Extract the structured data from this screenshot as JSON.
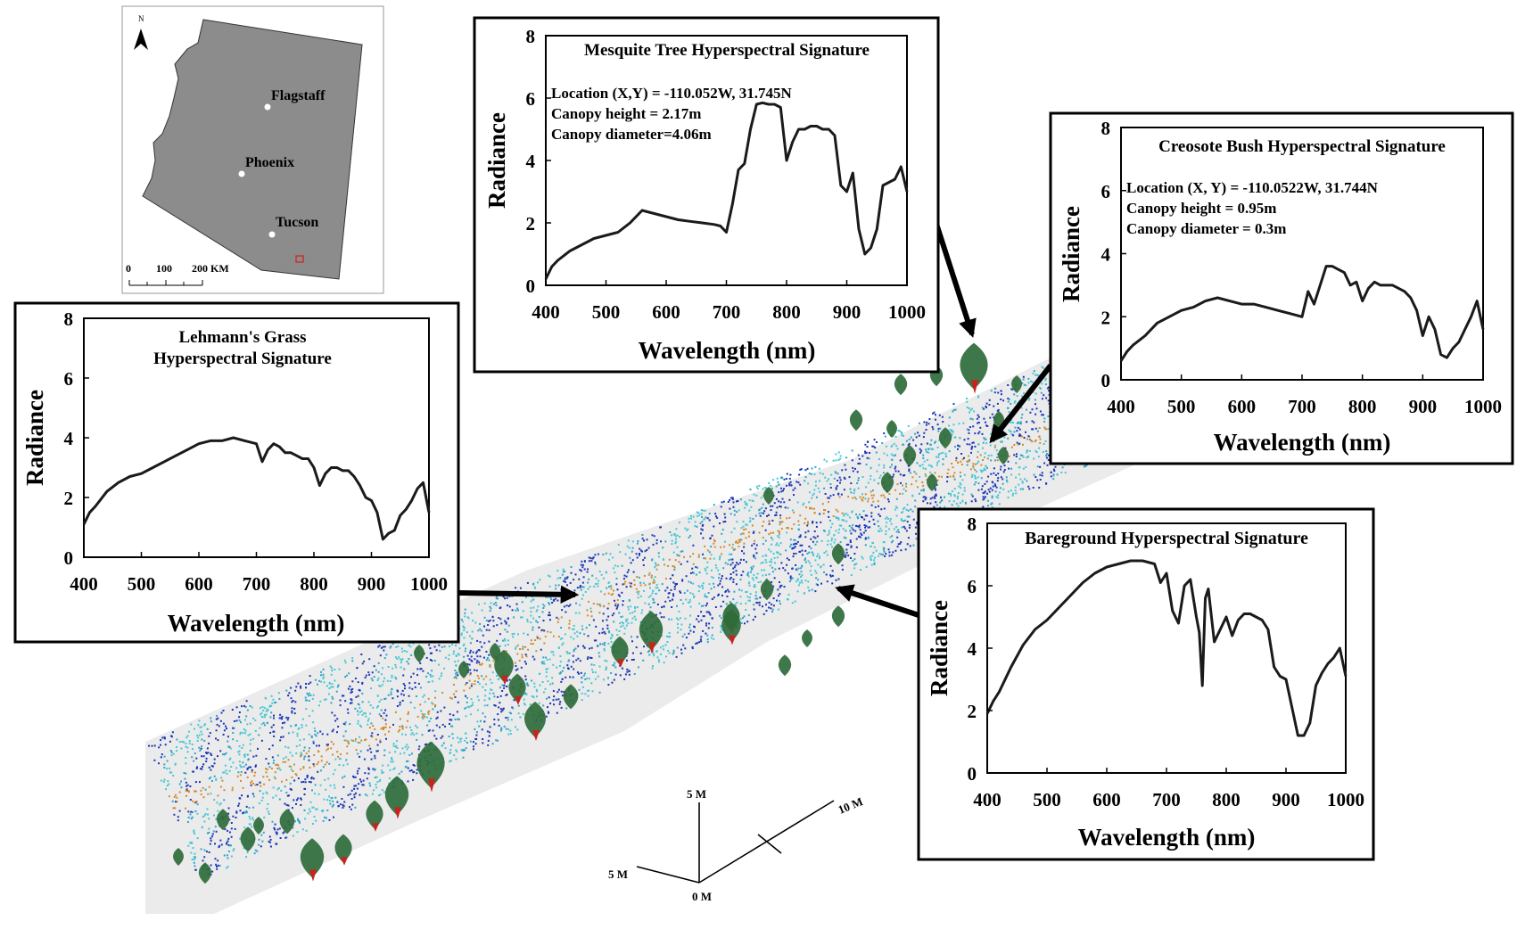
{
  "map": {
    "north_label": "N",
    "cities": [
      "Flagstaff",
      "Phoenix",
      "Tucson"
    ],
    "scale_labels": [
      "0",
      "100",
      "200 KM"
    ],
    "fill_color": "#8c8c8c",
    "site_marker_color": "#d21f1f"
  },
  "scene": {
    "axis_labels": {
      "z": "5 M",
      "x": "10 M",
      "y": "5 M",
      "origin": "0 M"
    },
    "point_colors": [
      "#1a36b8",
      "#2fa6c8",
      "#47c7d4",
      "#d28a2c",
      "#3a7a45"
    ],
    "canopy_color": "#2e6b3a",
    "stem_color": "#c8231e"
  },
  "chart_data": [
    {
      "id": "mesquite",
      "type": "line",
      "title": "Mesquite Tree Hyperspectral Signature",
      "annotations": [
        "Location (X,Y) = -110.052W, 31.745N",
        "Canopy height = 2.17m",
        "Canopy diameter=4.06m"
      ],
      "xlabel": "Wavelength (nm)",
      "ylabel": "Radiance",
      "xlim": [
        400,
        1000
      ],
      "ylim": [
        0,
        8
      ],
      "xticks": [
        400,
        500,
        600,
        700,
        800,
        900,
        1000
      ],
      "yticks": [
        0,
        2,
        4,
        6,
        8
      ],
      "grid": false,
      "x": [
        400,
        410,
        420,
        440,
        460,
        480,
        500,
        520,
        540,
        560,
        580,
        600,
        620,
        640,
        660,
        680,
        690,
        700,
        710,
        720,
        730,
        740,
        750,
        760,
        770,
        780,
        790,
        800,
        810,
        820,
        830,
        840,
        850,
        860,
        870,
        880,
        890,
        900,
        910,
        920,
        930,
        940,
        950,
        960,
        970,
        980,
        990,
        1000
      ],
      "y": [
        0.2,
        0.6,
        0.8,
        1.1,
        1.3,
        1.5,
        1.6,
        1.7,
        2.0,
        2.4,
        2.3,
        2.2,
        2.1,
        2.05,
        2.0,
        1.95,
        1.9,
        1.7,
        2.6,
        3.7,
        3.9,
        5.0,
        5.8,
        5.85,
        5.8,
        5.8,
        5.7,
        4.0,
        4.6,
        5.0,
        5.0,
        5.1,
        5.1,
        5.0,
        5.0,
        4.8,
        3.2,
        3.0,
        3.6,
        1.8,
        1.0,
        1.2,
        1.8,
        3.2,
        3.3,
        3.4,
        3.8,
        3.0
      ]
    },
    {
      "id": "creosote",
      "type": "line",
      "title": "Creosote Bush Hyperspectral Signature",
      "annotations": [
        "Location (X, Y) = -110.0522W, 31.744N",
        "Canopy height = 0.95m",
        "Canopy diameter = 0.3m"
      ],
      "xlabel": "Wavelength (nm)",
      "ylabel": "Radiance",
      "xlim": [
        400,
        1000
      ],
      "ylim": [
        0,
        8
      ],
      "xticks": [
        400,
        500,
        600,
        700,
        800,
        900,
        1000
      ],
      "yticks": [
        0,
        2,
        4,
        6,
        8
      ],
      "grid": false,
      "x": [
        400,
        410,
        420,
        440,
        460,
        480,
        500,
        520,
        540,
        560,
        580,
        600,
        620,
        640,
        660,
        680,
        700,
        710,
        720,
        730,
        740,
        750,
        760,
        770,
        780,
        790,
        800,
        810,
        820,
        830,
        840,
        850,
        860,
        870,
        880,
        890,
        900,
        910,
        920,
        930,
        940,
        950,
        960,
        970,
        980,
        990,
        1000
      ],
      "y": [
        0.6,
        0.9,
        1.1,
        1.4,
        1.8,
        2.0,
        2.2,
        2.3,
        2.5,
        2.6,
        2.5,
        2.4,
        2.4,
        2.3,
        2.2,
        2.1,
        2.0,
        2.8,
        2.4,
        3.0,
        3.6,
        3.6,
        3.5,
        3.4,
        3.0,
        3.1,
        2.5,
        2.9,
        3.1,
        3.0,
        3.0,
        3.0,
        2.9,
        2.8,
        2.6,
        2.2,
        1.4,
        2.0,
        1.6,
        0.8,
        0.7,
        1.0,
        1.2,
        1.6,
        2.0,
        2.5,
        1.6
      ]
    },
    {
      "id": "lehmanns",
      "type": "line",
      "title": "Lehmann's Grass Hyperspectral Signature",
      "title_lines": [
        "Lehmann's Grass",
        "Hyperspectral Signature"
      ],
      "xlabel": "Wavelength (nm)",
      "ylabel": "Radiance",
      "xlim": [
        400,
        1000
      ],
      "ylim": [
        0,
        8
      ],
      "xticks": [
        400,
        500,
        600,
        700,
        800,
        900,
        1000
      ],
      "yticks": [
        0,
        2,
        4,
        6,
        8
      ],
      "grid": false,
      "x": [
        400,
        410,
        420,
        440,
        460,
        480,
        500,
        520,
        540,
        560,
        580,
        600,
        620,
        640,
        660,
        680,
        700,
        710,
        720,
        730,
        740,
        750,
        760,
        770,
        780,
        790,
        800,
        810,
        820,
        830,
        840,
        850,
        860,
        870,
        880,
        890,
        900,
        910,
        920,
        930,
        940,
        950,
        960,
        970,
        980,
        990,
        1000
      ],
      "y": [
        1.1,
        1.5,
        1.7,
        2.2,
        2.5,
        2.7,
        2.8,
        3.0,
        3.2,
        3.4,
        3.6,
        3.8,
        3.9,
        3.9,
        4.0,
        3.9,
        3.8,
        3.2,
        3.6,
        3.8,
        3.7,
        3.5,
        3.5,
        3.4,
        3.3,
        3.3,
        3.0,
        2.4,
        2.8,
        3.0,
        3.0,
        2.9,
        2.9,
        2.7,
        2.4,
        2.0,
        1.9,
        1.5,
        0.6,
        0.8,
        0.9,
        1.4,
        1.6,
        1.9,
        2.3,
        2.5,
        1.5
      ]
    },
    {
      "id": "bareground",
      "type": "line",
      "title": "Bareground Hyperspectral Signature",
      "xlabel": "Wavelength (nm)",
      "ylabel": "Radiance",
      "xlim": [
        400,
        1000
      ],
      "ylim": [
        0,
        8
      ],
      "xticks": [
        400,
        500,
        600,
        700,
        800,
        900,
        1000
      ],
      "yticks": [
        0,
        2,
        4,
        6,
        8
      ],
      "grid": false,
      "x": [
        400,
        410,
        420,
        440,
        460,
        480,
        500,
        520,
        540,
        560,
        580,
        600,
        620,
        640,
        660,
        680,
        690,
        700,
        710,
        720,
        730,
        740,
        750,
        755,
        760,
        765,
        770,
        780,
        790,
        800,
        810,
        820,
        830,
        840,
        850,
        860,
        870,
        880,
        890,
        900,
        910,
        920,
        930,
        940,
        950,
        960,
        970,
        980,
        990,
        1000
      ],
      "y": [
        1.9,
        2.3,
        2.6,
        3.4,
        4.1,
        4.6,
        4.9,
        5.3,
        5.7,
        6.1,
        6.4,
        6.6,
        6.7,
        6.8,
        6.8,
        6.7,
        6.1,
        6.4,
        5.2,
        4.8,
        6.0,
        6.2,
        5.0,
        4.5,
        2.8,
        5.6,
        5.9,
        4.2,
        4.6,
        5.0,
        4.4,
        4.9,
        5.1,
        5.1,
        5.0,
        4.9,
        4.6,
        3.4,
        3.1,
        3.0,
        2.1,
        1.2,
        1.2,
        1.6,
        2.8,
        3.2,
        3.5,
        3.7,
        4.0,
        3.1
      ]
    }
  ]
}
